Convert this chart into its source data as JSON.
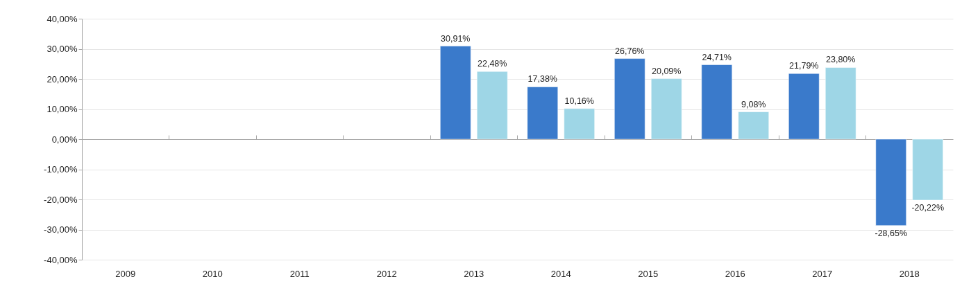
{
  "chart_data": {
    "type": "bar",
    "categories": [
      "2009",
      "2010",
      "2011",
      "2012",
      "2013",
      "2014",
      "2015",
      "2016",
      "2017",
      "2018"
    ],
    "series": [
      {
        "color": "#3a7acb",
        "values": [
          null,
          null,
          null,
          null,
          30.91,
          17.38,
          26.76,
          24.71,
          21.79,
          -28.65
        ],
        "value_labels": [
          null,
          null,
          null,
          null,
          "30,91%",
          "17,38%",
          "26,76%",
          "24,71%",
          "21,79%",
          "-28,65%"
        ]
      },
      {
        "color": "#9ed6e6",
        "values": [
          null,
          null,
          null,
          null,
          22.48,
          10.16,
          20.09,
          9.08,
          23.8,
          -20.22
        ],
        "value_labels": [
          null,
          null,
          null,
          null,
          "22,48%",
          "10,16%",
          "20,09%",
          "9,08%",
          "23,80%",
          "-20,22%"
        ]
      }
    ],
    "ylim": [
      -40,
      40
    ],
    "yticks": [
      {
        "value": -40,
        "label": "-40,00%"
      },
      {
        "value": -30,
        "label": "-30,00%"
      },
      {
        "value": -20,
        "label": "-20,00%"
      },
      {
        "value": -10,
        "label": "-10,00%"
      },
      {
        "value": 0,
        "label": "0,00%"
      },
      {
        "value": 10,
        "label": "10,00%"
      },
      {
        "value": 20,
        "label": "20,00%"
      },
      {
        "value": 30,
        "label": "30,00%"
      },
      {
        "value": 40,
        "label": "40,00%"
      }
    ],
    "grid": "y"
  }
}
